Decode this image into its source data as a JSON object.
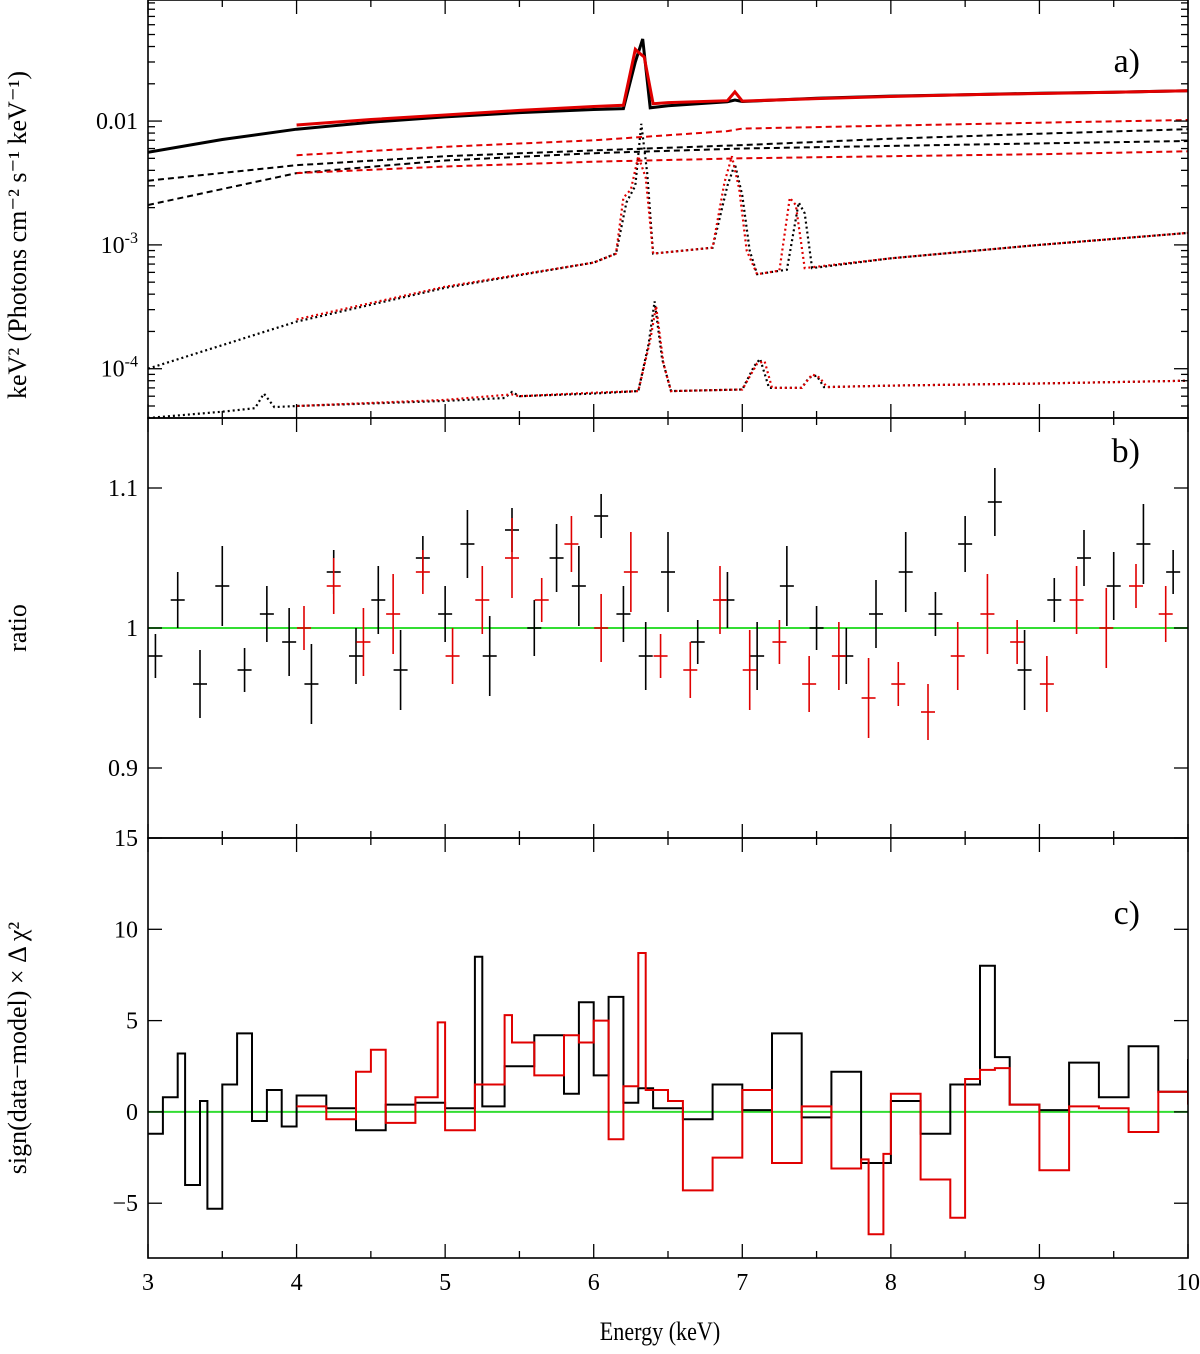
{
  "chart_data": [
    {
      "panel": "a)",
      "type": "line",
      "yscale": "log",
      "xlabel": "",
      "ylabel": "keV² (Photons cm⁻² s⁻¹ keV⁻¹)",
      "xlim": [
        3,
        10
      ],
      "ylim": [
        4e-05,
        0.095
      ],
      "yticks": [
        {
          "value": 0.0001,
          "base": "10",
          "exp": "-4"
        },
        {
          "value": 0.001,
          "base": "10",
          "exp": "-3"
        },
        {
          "value": 0.01,
          "base": "0.01",
          "exp": ""
        }
      ],
      "series": [
        {
          "name": "data-black",
          "color": "#000000",
          "style": "data",
          "x": [
            3,
            3.5,
            4,
            4.5,
            5,
            5.5,
            6,
            6.2,
            6.28,
            6.33,
            6.38,
            6.5,
            6.9,
            6.95,
            7.0,
            7.5,
            8,
            8.5,
            9,
            9.5,
            10
          ],
          "y": [
            0.0056,
            0.0071,
            0.0086,
            0.0098,
            0.0108,
            0.0117,
            0.0124,
            0.0126,
            0.03,
            0.046,
            0.0128,
            0.0133,
            0.0143,
            0.0148,
            0.0144,
            0.0153,
            0.0159,
            0.0163,
            0.0168,
            0.0171,
            0.0176
          ]
        },
        {
          "name": "data-red",
          "color": "#e00000",
          "style": "data",
          "x": [
            4,
            4.5,
            5,
            5.5,
            6,
            6.2,
            6.28,
            6.3,
            6.34,
            6.4,
            6.5,
            6.9,
            6.95,
            7.0,
            7.5,
            8,
            8.5,
            9,
            9.5,
            10
          ],
          "y": [
            0.0093,
            0.0103,
            0.0112,
            0.0122,
            0.0131,
            0.0134,
            0.038,
            0.036,
            0.033,
            0.0138,
            0.0141,
            0.0146,
            0.0172,
            0.0145,
            0.0152,
            0.0158,
            0.0163,
            0.0167,
            0.0171,
            0.0176
          ]
        },
        {
          "name": "comp-black-1",
          "color": "#000000",
          "style": "dashed",
          "x": [
            3,
            4,
            5,
            6,
            7,
            8,
            9,
            10
          ],
          "y": [
            0.0033,
            0.0044,
            0.0052,
            0.0058,
            0.0064,
            0.0072,
            0.0079,
            0.0086
          ]
        },
        {
          "name": "comp-black-2",
          "color": "#000000",
          "style": "dashed",
          "x": [
            3,
            4,
            5,
            6,
            7,
            8,
            9,
            10
          ],
          "y": [
            0.0021,
            0.0038,
            0.0048,
            0.0055,
            0.006,
            0.0063,
            0.0066,
            0.0069
          ]
        },
        {
          "name": "comp-red-1",
          "color": "#e00000",
          "style": "dashed",
          "x": [
            4,
            5,
            6,
            6.9,
            7.0,
            8,
            9,
            10
          ],
          "y": [
            0.0053,
            0.0062,
            0.007,
            0.0083,
            0.0087,
            0.0092,
            0.0097,
            0.0102
          ]
        },
        {
          "name": "comp-red-2",
          "color": "#e00000",
          "style": "dashed",
          "x": [
            4,
            5,
            6,
            7,
            8,
            9,
            10
          ],
          "y": [
            0.0038,
            0.0043,
            0.0047,
            0.005,
            0.0052,
            0.0054,
            0.0057
          ]
        },
        {
          "name": "reflection-black",
          "color": "#000000",
          "style": "dotted",
          "x": [
            3,
            4,
            5,
            6,
            6.15,
            6.22,
            6.28,
            6.32,
            6.36,
            6.4,
            6.8,
            6.9,
            6.95,
            7.0,
            7.05,
            7.1,
            7.3,
            7.38,
            7.42,
            7.47,
            8,
            9,
            10
          ],
          "y": [
            0.0001,
            0.00024,
            0.00045,
            0.00072,
            0.00085,
            0.0022,
            0.003,
            0.0095,
            0.0038,
            0.00085,
            0.00095,
            0.003,
            0.0045,
            0.0025,
            0.0009,
            0.00058,
            0.00063,
            0.0022,
            0.0018,
            0.00065,
            0.00078,
            0.001,
            0.00125
          ]
        },
        {
          "name": "reflection-red",
          "color": "#e00000",
          "style": "dotted",
          "x": [
            4,
            5,
            6,
            6.15,
            6.2,
            6.25,
            6.3,
            6.35,
            6.4,
            6.8,
            6.88,
            6.93,
            6.98,
            7.03,
            7.1,
            7.25,
            7.32,
            7.36,
            7.42,
            8,
            9,
            10
          ],
          "y": [
            0.00025,
            0.00046,
            0.00072,
            0.00085,
            0.0024,
            0.0028,
            0.0052,
            0.0035,
            0.00085,
            0.00095,
            0.0032,
            0.0052,
            0.0028,
            0.0009,
            0.00058,
            0.00062,
            0.0024,
            0.0021,
            0.00065,
            0.00078,
            0.001,
            0.00125
          ]
        },
        {
          "name": "lines-black",
          "color": "#000000",
          "style": "dotted",
          "x": [
            3,
            3.5,
            3.72,
            3.78,
            3.85,
            4,
            5,
            5.4,
            5.45,
            5.5,
            6,
            6.3,
            6.37,
            6.41,
            6.46,
            6.52,
            7,
            7.08,
            7.12,
            7.18,
            7.4,
            7.45,
            7.5,
            7.55,
            8,
            9,
            10
          ],
          "y": [
            4e-05,
            4.5e-05,
            4.8e-05,
            6.3e-05,
            4.9e-05,
            5e-05,
            5.5e-05,
            5.8e-05,
            6.5e-05,
            6e-05,
            6.3e-05,
            6.6e-05,
            0.00016,
            0.00035,
            0.00012,
            6.6e-05,
            6.8e-05,
            0.000105,
            0.00012,
            7e-05,
            7e-05,
            8.5e-05,
            8.8e-05,
            7.1e-05,
            7.3e-05,
            7.6e-05,
            8e-05
          ]
        },
        {
          "name": "lines-red",
          "color": "#e00000",
          "style": "dotted",
          "x": [
            4,
            5,
            5.45,
            5.5,
            6,
            6.3,
            6.38,
            6.42,
            6.47,
            6.52,
            7,
            7.1,
            7.15,
            7.2,
            7.4,
            7.47,
            7.52,
            7.57,
            8,
            9,
            10
          ],
          "y": [
            5e-05,
            5.6e-05,
            6.2e-05,
            6e-05,
            6.4e-05,
            6.6e-05,
            0.00017,
            0.00032,
            0.00011,
            6.6e-05,
            6.8e-05,
            0.00011,
            0.000115,
            7e-05,
            7e-05,
            9e-05,
            8.5e-05,
            7.1e-05,
            7.3e-05,
            7.6e-05,
            8e-05
          ]
        }
      ]
    },
    {
      "panel": "b)",
      "type": "scatter",
      "xlabel": "",
      "ylabel": "ratio",
      "xlim": [
        3,
        10
      ],
      "ylim": [
        0.85,
        1.15
      ],
      "yticks": [
        {
          "value": 0.9,
          "label": "0.9"
        },
        {
          "value": 1.0,
          "label": "1"
        },
        {
          "value": 1.1,
          "label": "1.1"
        }
      ],
      "reference_line": {
        "value": 1.0,
        "color": "#33dd33"
      },
      "series": [
        {
          "name": "black",
          "color": "#000000",
          "x": [
            3.05,
            3.2,
            3.35,
            3.5,
            3.65,
            3.8,
            3.95,
            4.1,
            4.25,
            4.4,
            4.55,
            4.7,
            4.85,
            5.0,
            5.15,
            5.3,
            5.45,
            5.6,
            5.75,
            5.9,
            6.05,
            6.2,
            6.35,
            6.5,
            6.7,
            6.9,
            7.1,
            7.3,
            7.5,
            7.7,
            7.9,
            8.1,
            8.3,
            8.5,
            8.7,
            8.9,
            9.1,
            9.3,
            9.5,
            9.7,
            9.9
          ],
          "y": [
            0.98,
            1.02,
            0.96,
            1.03,
            0.97,
            1.01,
            0.99,
            0.96,
            1.04,
            0.98,
            1.02,
            0.97,
            1.05,
            1.01,
            1.06,
            0.98,
            1.07,
            1.0,
            1.05,
            1.03,
            1.08,
            1.01,
            0.98,
            1.04,
            0.99,
            1.02,
            0.98,
            1.03,
            1.0,
            0.98,
            1.01,
            1.04,
            1.01,
            1.06,
            1.09,
            0.97,
            1.02,
            1.05,
            1.03,
            1.06,
            1.04
          ]
        },
        {
          "name": "red",
          "color": "#e00000",
          "x": [
            4.05,
            4.25,
            4.45,
            4.65,
            4.85,
            5.05,
            5.25,
            5.45,
            5.65,
            5.85,
            6.05,
            6.25,
            6.45,
            6.65,
            6.85,
            7.05,
            7.25,
            7.45,
            7.65,
            7.85,
            8.05,
            8.25,
            8.45,
            8.65,
            8.85,
            9.05,
            9.25,
            9.45,
            9.65,
            9.85
          ],
          "y": [
            1.0,
            1.03,
            0.99,
            1.01,
            1.04,
            0.98,
            1.02,
            1.05,
            1.02,
            1.06,
            1.0,
            1.04,
            0.98,
            0.97,
            1.02,
            0.97,
            0.99,
            0.96,
            0.98,
            0.95,
            0.96,
            0.94,
            0.98,
            1.01,
            0.99,
            0.96,
            1.02,
            1.0,
            1.03,
            1.01
          ]
        }
      ]
    },
    {
      "panel": "c)",
      "type": "line",
      "xlabel": "Energy (keV)",
      "ylabel": "sign(data−model) × Δ χ²",
      "xlim": [
        3,
        10
      ],
      "ylim": [
        -8,
        15
      ],
      "yticks": [
        {
          "value": -5,
          "label": "−5"
        },
        {
          "value": 0,
          "label": "0"
        },
        {
          "value": 5,
          "label": "5"
        },
        {
          "value": 10,
          "label": "10"
        },
        {
          "value": 15,
          "label": "15"
        }
      ],
      "xticks": [
        {
          "value": 3,
          "label": "3"
        },
        {
          "value": 4,
          "label": "4"
        },
        {
          "value": 5,
          "label": "5"
        },
        {
          "value": 6,
          "label": "6"
        },
        {
          "value": 7,
          "label": "7"
        },
        {
          "value": 8,
          "label": "8"
        },
        {
          "value": 9,
          "label": "9"
        },
        {
          "value": 10,
          "label": "10"
        }
      ],
      "reference_line": {
        "value": 0,
        "color": "#33dd33"
      },
      "series": [
        {
          "name": "black",
          "color": "#000000",
          "style": "histogram",
          "x": [
            3.0,
            3.1,
            3.2,
            3.25,
            3.35,
            3.4,
            3.5,
            3.6,
            3.7,
            3.8,
            3.9,
            4.0,
            4.2,
            4.4,
            4.6,
            4.8,
            5.0,
            5.2,
            5.25,
            5.4,
            5.6,
            5.8,
            5.9,
            6.0,
            6.1,
            6.2,
            6.3,
            6.4,
            6.6,
            6.8,
            7.0,
            7.2,
            7.4,
            7.6,
            7.8,
            8.0,
            8.2,
            8.4,
            8.6,
            8.7,
            8.8,
            9.0,
            9.2,
            9.4,
            9.6,
            9.8,
            10.0
          ],
          "y": [
            -1.2,
            0.8,
            3.2,
            -4.0,
            0.6,
            -5.3,
            1.5,
            4.3,
            -0.5,
            1.2,
            -0.8,
            0.9,
            0.2,
            -1.0,
            0.4,
            0.5,
            0.2,
            8.5,
            0.3,
            2.5,
            4.2,
            1.0,
            6.0,
            2.0,
            6.3,
            0.5,
            1.3,
            0.2,
            -0.4,
            1.5,
            0.1,
            4.3,
            -0.3,
            2.2,
            -2.8,
            0.6,
            -1.2,
            1.5,
            8.0,
            3.0,
            0.4,
            0.1,
            2.7,
            0.8,
            3.6,
            1.1,
            2.9
          ]
        },
        {
          "name": "red",
          "color": "#e00000",
          "style": "histogram",
          "x": [
            4.0,
            4.2,
            4.4,
            4.5,
            4.6,
            4.8,
            4.95,
            5.0,
            5.2,
            5.4,
            5.45,
            5.6,
            5.8,
            5.9,
            6.0,
            6.1,
            6.2,
            6.3,
            6.35,
            6.5,
            6.6,
            6.8,
            7.0,
            7.2,
            7.4,
            7.6,
            7.8,
            7.85,
            7.95,
            8.0,
            8.2,
            8.4,
            8.5,
            8.6,
            8.7,
            8.8,
            9.0,
            9.2,
            9.4,
            9.6,
            9.8,
            10.0
          ],
          "y": [
            0.3,
            -0.4,
            2.2,
            3.4,
            -0.6,
            0.8,
            4.9,
            -1.0,
            1.5,
            5.3,
            3.8,
            2.0,
            4.2,
            3.8,
            5.0,
            -1.5,
            1.4,
            8.7,
            1.2,
            0.6,
            -4.3,
            -2.5,
            1.2,
            -2.8,
            0.3,
            -3.1,
            -2.6,
            -6.7,
            -2.3,
            1.0,
            -3.7,
            -5.8,
            1.8,
            2.3,
            2.4,
            0.4,
            -3.2,
            0.3,
            0.2,
            -1.1,
            1.1,
            0.4
          ]
        }
      ]
    }
  ],
  "panel_labels": {
    "a": "a)",
    "b": "b)",
    "c": "c)"
  },
  "axis_titles": {
    "x": "Energy (keV)",
    "y_top": "keV² (Photons cm⁻² s⁻¹ keV⁻¹)",
    "y_mid": "ratio",
    "y_bottom": "sign(data−model) × Δ χ²"
  }
}
